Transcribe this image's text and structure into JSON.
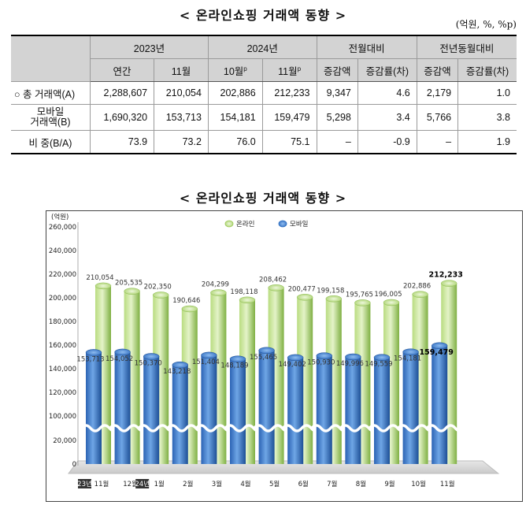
{
  "title": "< 온라인쇼핑 거래액 동향 >",
  "unit": "(억원, %, %p)",
  "table": {
    "group_headers": [
      "2023년",
      "2024년",
      "전월대비",
      "전년동월대비"
    ],
    "sub_headers": [
      "연간",
      "11월",
      "10월",
      "11월",
      "증감액",
      "증감률(차)",
      "증감액",
      "증감률(차)"
    ],
    "sup_mark": "p",
    "rows": [
      {
        "label": "○ 총 거래액(A)",
        "values": [
          "2,288,607",
          "210,054",
          "202,886",
          "212,233",
          "9,347",
          "4.6",
          "2,179",
          "1.0"
        ]
      },
      {
        "label_line1": "모바일",
        "label_line2": "거래액(B)",
        "values": [
          "1,690,320",
          "153,713",
          "154,181",
          "159,479",
          "5,298",
          "3.4",
          "5,766",
          "3.8"
        ]
      },
      {
        "label": "비  중(B/A)",
        "values": [
          "73.9",
          "73.2",
          "76.0",
          "75.1",
          "–",
          "-0.9",
          "–",
          "1.9"
        ]
      }
    ]
  },
  "chart_title": "< 온라인쇼핑 거래액 동향 >",
  "chart_data": {
    "type": "bar",
    "unit_label": "(억원)",
    "categories": [
      "11월",
      "12월",
      "1월",
      "2월",
      "3월",
      "4월",
      "5월",
      "6월",
      "7월",
      "8월",
      "9월",
      "10월",
      "11월"
    ],
    "year_markers": [
      {
        "text": "23년",
        "before_index": 0
      },
      {
        "text": "24년",
        "before_index": 2
      }
    ],
    "series": [
      {
        "name": "온라인",
        "color": "#9dc95a",
        "values": [
          210054,
          205535,
          202350,
          190646,
          204299,
          198118,
          208462,
          200477,
          199158,
          195765,
          196005,
          202886,
          212233
        ]
      },
      {
        "name": "모바일",
        "color": "#2e6fc0",
        "values": [
          153713,
          154052,
          150370,
          143218,
          151404,
          148189,
          155465,
          149402,
          150930,
          149996,
          149559,
          154181,
          159479
        ]
      }
    ],
    "value_labels": {
      "온라인": [
        "210,054",
        "205,535",
        "202,350",
        "190,646",
        "204,299",
        "198,118",
        "208,462",
        "200,477",
        "199,158",
        "195,765",
        "196,005",
        "202,886",
        "212,233"
      ],
      "모바일": [
        "153,713",
        "154,052",
        "150,370",
        "143,218",
        "151,404",
        "148,189",
        "155,465",
        "149,402",
        "150,930",
        "149,996",
        "149,559",
        "154,181",
        "159,479"
      ]
    },
    "y_ticks": [
      0,
      20000,
      100000,
      120000,
      140000,
      160000,
      180000,
      200000,
      220000,
      240000,
      260000
    ],
    "y_tick_labels": [
      "0",
      "20,000",
      "100,000",
      "120,000",
      "140,000",
      "160,000",
      "180,000",
      "200,000",
      "220,000",
      "240,000",
      "260,000"
    ],
    "axis_break": {
      "from": 20000,
      "to": 100000
    },
    "ylim": [
      0,
      260000
    ],
    "legend_position": "top-center",
    "grid": false
  }
}
